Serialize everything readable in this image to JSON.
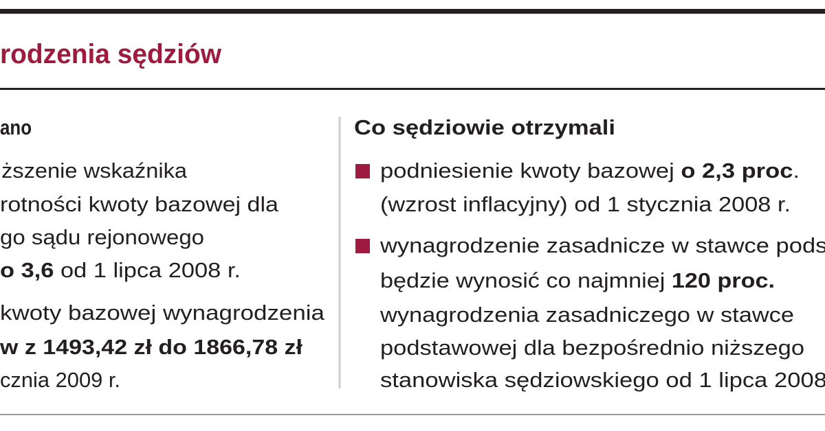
{
  "title": "rodzenia sędziów",
  "left": {
    "heading": "ano",
    "lines": [
      [
        {
          "text": "ższenie wskaźnika",
          "bold": false
        }
      ],
      [
        {
          "text": "rotności kwoty bazowej dla",
          "bold": false
        }
      ],
      [
        {
          "text": "go sądu rejonowego",
          "bold": false
        }
      ],
      [
        {
          "text": "o 3,6",
          "bold": true
        },
        {
          "text": " od 1 lipca 2008 r.",
          "bold": false
        }
      ],
      [
        {
          "text": "kwoty bazowej wynagrodzenia",
          "bold": false
        }
      ],
      [
        {
          "text": "w z 1493,42 zł do 1866,78 zł",
          "bold": true
        }
      ],
      [
        {
          "text": "cznia 2009 r.",
          "bold": false
        }
      ]
    ]
  },
  "right": {
    "heading": "Co sędziowie otrzymali",
    "items": [
      {
        "lines": [
          [
            {
              "text": "podniesienie kwoty bazowej ",
              "bold": false
            },
            {
              "text": "o 2,3 proc",
              "bold": true
            },
            {
              "text": ".",
              "bold": false
            }
          ],
          [
            {
              "text": "(wzrost inflacyjny) od 1 stycznia 2008 r.",
              "bold": false
            }
          ]
        ]
      },
      {
        "lines": [
          [
            {
              "text": "wynagrodzenie zasadnicze w stawce podst",
              "bold": false
            }
          ],
          [
            {
              "text": "będzie wynosić co najmniej ",
              "bold": false
            },
            {
              "text": "120 proc.",
              "bold": true
            }
          ],
          [
            {
              "text": "wynagrodzenia zasadniczego w stawce",
              "bold": false
            }
          ],
          [
            {
              "text": "podstawowej dla bezpośrednio niższego",
              "bold": false
            }
          ],
          [
            {
              "text": "stanowiska sędziowskiego od 1 lipca 2008",
              "bold": false
            }
          ]
        ]
      }
    ]
  }
}
